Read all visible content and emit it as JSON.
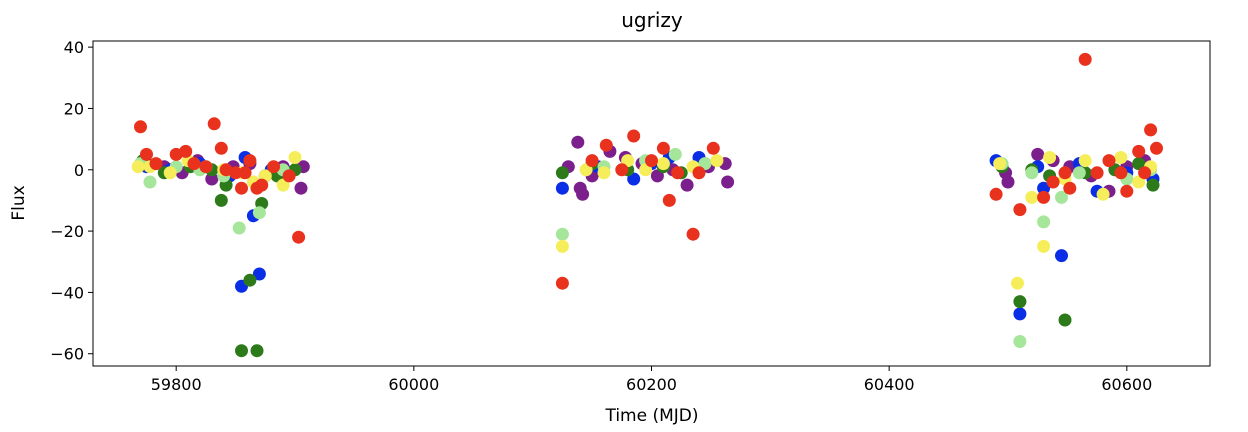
{
  "chart_data": {
    "type": "scatter",
    "title": "ugrizy",
    "xlabel": "Time (MJD)",
    "ylabel": "Flux",
    "xlim": [
      59730,
      60670
    ],
    "ylim": [
      -64,
      42
    ],
    "xticks": [
      59800,
      60000,
      60200,
      60400,
      60600
    ],
    "yticks": [
      40,
      20,
      0,
      -20,
      -40,
      -60
    ],
    "grid": false,
    "series": [
      {
        "color": "#7b1f8c",
        "points": [
          [
            59775,
            2
          ],
          [
            59790,
            1
          ],
          [
            59805,
            -1
          ],
          [
            59818,
            3
          ],
          [
            59830,
            -3
          ],
          [
            59848,
            1
          ],
          [
            59862,
            2
          ],
          [
            59875,
            -2
          ],
          [
            59890,
            1
          ],
          [
            59905,
            -6
          ],
          [
            59907,
            1
          ],
          [
            60130,
            1
          ],
          [
            60138,
            9
          ],
          [
            60140,
            -6
          ],
          [
            60142,
            -8
          ],
          [
            60150,
            -2
          ],
          [
            60165,
            6
          ],
          [
            60178,
            4
          ],
          [
            60192,
            2
          ],
          [
            60205,
            -2
          ],
          [
            60218,
            0
          ],
          [
            60230,
            -5
          ],
          [
            60248,
            1
          ],
          [
            60262,
            2
          ],
          [
            60264,
            -4
          ],
          [
            60498,
            -1
          ],
          [
            60500,
            -4
          ],
          [
            60525,
            5
          ],
          [
            60538,
            3
          ],
          [
            60552,
            1
          ],
          [
            60570,
            -2
          ],
          [
            60585,
            -7
          ],
          [
            60600,
            1
          ],
          [
            60615,
            3
          ]
        ]
      },
      {
        "color": "#0a2ee6",
        "points": [
          [
            59775,
            1
          ],
          [
            59795,
            0
          ],
          [
            59820,
            2
          ],
          [
            59845,
            -2
          ],
          [
            59855,
            -38
          ],
          [
            59858,
            4
          ],
          [
            59865,
            -15
          ],
          [
            59870,
            -34
          ],
          [
            59880,
            0
          ],
          [
            59895,
            -1
          ],
          [
            60125,
            -6
          ],
          [
            60155,
            1
          ],
          [
            60185,
            -3
          ],
          [
            60200,
            2
          ],
          [
            60215,
            4
          ],
          [
            60240,
            4
          ],
          [
            60490,
            3
          ],
          [
            60510,
            -47
          ],
          [
            60525,
            1
          ],
          [
            60530,
            -6
          ],
          [
            60545,
            -28
          ],
          [
            60560,
            2
          ],
          [
            60575,
            -7
          ],
          [
            60600,
            -1
          ],
          [
            60622,
            -3
          ]
        ]
      },
      {
        "color": "#2d7a1b",
        "points": [
          [
            59772,
            3
          ],
          [
            59790,
            -1
          ],
          [
            59812,
            1
          ],
          [
            59830,
            0
          ],
          [
            59838,
            -10
          ],
          [
            59842,
            -5
          ],
          [
            59855,
            -59
          ],
          [
            59862,
            -36
          ],
          [
            59868,
            -59
          ],
          [
            59872,
            -11
          ],
          [
            59885,
            -2
          ],
          [
            59900,
            0
          ],
          [
            60125,
            -1
          ],
          [
            60150,
            2
          ],
          [
            60180,
            0
          ],
          [
            60210,
            1
          ],
          [
            60225,
            -1
          ],
          [
            60245,
            2
          ],
          [
            60495,
            1
          ],
          [
            60510,
            -43
          ],
          [
            60520,
            0
          ],
          [
            60535,
            -2
          ],
          [
            60548,
            -49
          ],
          [
            60565,
            -1
          ],
          [
            60590,
            0
          ],
          [
            60610,
            2
          ],
          [
            60622,
            -5
          ]
        ]
      },
      {
        "color": "#a6e69a",
        "points": [
          [
            59770,
            2
          ],
          [
            59778,
            -4
          ],
          [
            59800,
            1
          ],
          [
            59820,
            0
          ],
          [
            59840,
            -2
          ],
          [
            59853,
            -19
          ],
          [
            59870,
            -14
          ],
          [
            59890,
            0
          ],
          [
            60125,
            -21
          ],
          [
            60160,
            1
          ],
          [
            60195,
            3
          ],
          [
            60220,
            5
          ],
          [
            60245,
            2
          ],
          [
            60495,
            2
          ],
          [
            60510,
            -56
          ],
          [
            60520,
            -1
          ],
          [
            60530,
            -17
          ],
          [
            60545,
            -9
          ],
          [
            60560,
            -1
          ],
          [
            60600,
            -3
          ],
          [
            60620,
            0
          ]
        ]
      },
      {
        "color": "#f5ee5a",
        "points": [
          [
            59768,
            1
          ],
          [
            59778,
            1
          ],
          [
            59795,
            -1
          ],
          [
            59810,
            3
          ],
          [
            59825,
            1
          ],
          [
            59840,
            0
          ],
          [
            59855,
            -1
          ],
          [
            59865,
            -4
          ],
          [
            59875,
            -2
          ],
          [
            59890,
            -5
          ],
          [
            59900,
            4
          ],
          [
            60125,
            -25
          ],
          [
            60145,
            0
          ],
          [
            60160,
            -1
          ],
          [
            60180,
            3
          ],
          [
            60195,
            0
          ],
          [
            60210,
            2
          ],
          [
            60235,
            1
          ],
          [
            60255,
            3
          ],
          [
            60493,
            2
          ],
          [
            60508,
            -37
          ],
          [
            60520,
            -9
          ],
          [
            60530,
            -25
          ],
          [
            60535,
            4
          ],
          [
            60548,
            -3
          ],
          [
            60565,
            3
          ],
          [
            60580,
            -8
          ],
          [
            60595,
            4
          ],
          [
            60610,
            -4
          ],
          [
            60620,
            1
          ]
        ]
      },
      {
        "color": "#e8321e",
        "points": [
          [
            59770,
            14
          ],
          [
            59775,
            5
          ],
          [
            59783,
            2
          ],
          [
            59800,
            5
          ],
          [
            59808,
            6
          ],
          [
            59815,
            2
          ],
          [
            59825,
            1
          ],
          [
            59832,
            15
          ],
          [
            59838,
            7
          ],
          [
            59842,
            0
          ],
          [
            59850,
            -1
          ],
          [
            59855,
            -6
          ],
          [
            59858,
            -1
          ],
          [
            59862,
            3
          ],
          [
            59868,
            -6
          ],
          [
            59872,
            -5
          ],
          [
            59882,
            1
          ],
          [
            59895,
            -2
          ],
          [
            59903,
            -22
          ],
          [
            60125,
            -37
          ],
          [
            60150,
            3
          ],
          [
            60162,
            8
          ],
          [
            60175,
            0
          ],
          [
            60185,
            11
          ],
          [
            60200,
            3
          ],
          [
            60210,
            7
          ],
          [
            60215,
            -10
          ],
          [
            60222,
            -1
          ],
          [
            60235,
            -21
          ],
          [
            60240,
            -1
          ],
          [
            60252,
            7
          ],
          [
            60490,
            -8
          ],
          [
            60510,
            -13
          ],
          [
            60530,
            -9
          ],
          [
            60538,
            -4
          ],
          [
            60548,
            -1
          ],
          [
            60552,
            -6
          ],
          [
            60565,
            36
          ],
          [
            60575,
            -1
          ],
          [
            60585,
            3
          ],
          [
            60595,
            -1
          ],
          [
            60600,
            -7
          ],
          [
            60610,
            6
          ],
          [
            60615,
            -1
          ],
          [
            60620,
            13
          ],
          [
            60625,
            7
          ]
        ]
      }
    ]
  }
}
